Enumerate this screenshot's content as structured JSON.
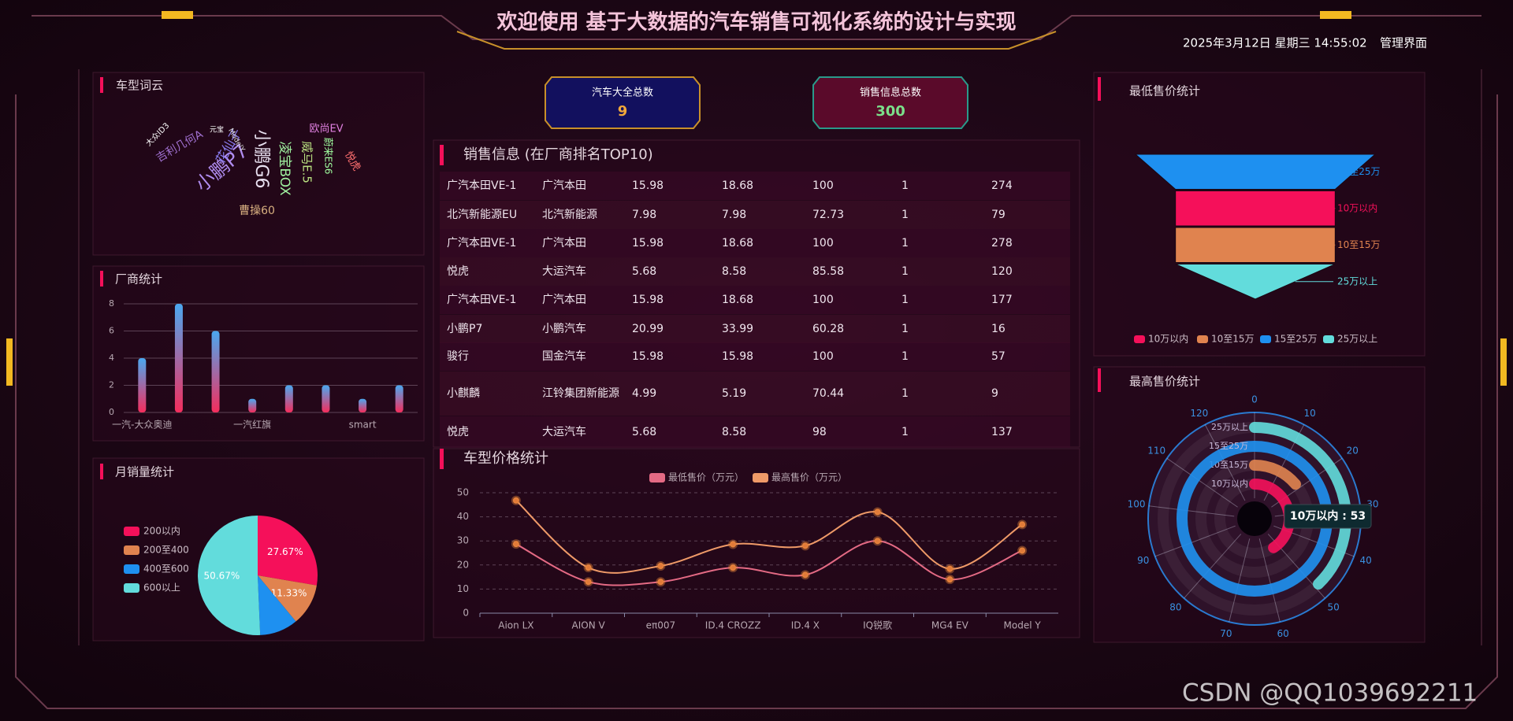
{
  "header": {
    "title": "欢迎使用 基于大数据的汽车销售可视化系统的设计与实现",
    "datetime": "2025年3月12日 星期三 14:55:02",
    "admin_link": "管理界面"
  },
  "watermark": "CSDN @QQ1039692211",
  "word_cloud": {
    "title": "车型词云",
    "words": [
      "小鹏P7",
      "花仙子",
      "吉利几何A",
      "大众ID3",
      "元宝",
      "ModelY",
      "小鹏G6",
      "凌宝BOX",
      "威马E.5",
      "欧尚EV",
      "蔚来ES6",
      "悦虎",
      "曹操60"
    ]
  },
  "counters": [
    {
      "label": "汽车大全总数",
      "value": 9
    },
    {
      "label": "销售信息总数",
      "value": 300
    }
  ],
  "sales_table": {
    "title": "销售信息 (在厂商排名TOP10)",
    "rows": [
      [
        "广汽本田VE-1",
        "广汽本田",
        "15.98",
        "18.68",
        "100",
        "1",
        "274"
      ],
      [
        "北汽新能源EU",
        "北汽新能源",
        "7.98",
        "7.98",
        "72.73",
        "1",
        "79"
      ],
      [
        "广汽本田VE-1",
        "广汽本田",
        "15.98",
        "18.68",
        "100",
        "1",
        "278"
      ],
      [
        "悦虎",
        "大运汽车",
        "5.68",
        "8.58",
        "85.58",
        "1",
        "120"
      ],
      [
        "广汽本田VE-1",
        "广汽本田",
        "15.98",
        "18.68",
        "100",
        "1",
        "177"
      ],
      [
        "小鹏P7",
        "小鹏汽车",
        "20.99",
        "33.99",
        "60.28",
        "1",
        "16"
      ],
      [
        "骏行",
        "国金汽车",
        "15.98",
        "15.98",
        "100",
        "1",
        "57"
      ],
      [
        "小麒麟",
        "江铃集团新能源",
        "4.99",
        "5.19",
        "70.44",
        "1",
        "9"
      ],
      [
        "悦虎",
        "大运汽车",
        "5.68",
        "8.58",
        "98",
        "1",
        "137"
      ]
    ]
  },
  "chart_data": [
    {
      "type": "bar",
      "title": "厂商统计",
      "categories": [
        "一汽-大众奥迪",
        null,
        null,
        "一汽红旗",
        null,
        null,
        "smart",
        null
      ],
      "values": [
        4,
        8,
        6,
        1,
        2,
        2,
        1,
        2
      ],
      "colors": [
        "#4aa8f0",
        "#f52d5c"
      ],
      "ylim": [
        0,
        8
      ],
      "yticks": [
        0,
        2,
        4,
        6,
        8
      ],
      "grid": true
    },
    {
      "type": "pie",
      "title": "月销量统计",
      "categories": [
        "200以内",
        "200至400",
        "400至600",
        "600以上"
      ],
      "values": [
        27.67,
        11.33,
        10.33,
        50.67
      ],
      "value_labels": [
        "27.67%",
        "11.33%",
        null,
        "50.67%"
      ],
      "colors": [
        "#f5105a",
        "#e0834f",
        "#1e90f0",
        "#62dcdc"
      ],
      "legend": "left"
    },
    {
      "type": "line",
      "title": "车型价格统计",
      "categories": [
        "Aion LX",
        "AION V",
        "eπ007",
        "ID.4 CROZZ",
        "ID.4 X",
        "IQ锐歌",
        "MG4 EV",
        "Model Y"
      ],
      "series": [
        {
          "name": "最低售价（万元）",
          "color": "#e46a84",
          "values": [
            28.7,
            13,
            13,
            18.9,
            15.9,
            30,
            14,
            26
          ]
        },
        {
          "name": "最高售价（万元）",
          "color": "#ef9a68",
          "values": [
            46.8,
            18.9,
            19.6,
            28.6,
            28,
            42,
            18.4,
            36.8
          ]
        }
      ],
      "ylim": [
        0,
        50
      ],
      "yticks": [
        0,
        10,
        20,
        30,
        40,
        50
      ],
      "grid": true,
      "legend": "top"
    },
    {
      "type": "funnel",
      "title": "最低售价统计",
      "categories": [
        "15至25万",
        "10万以内",
        "10至15万",
        "25万以上"
      ],
      "values": [
        3,
        2,
        2,
        2
      ],
      "colors": [
        "#1e90f0",
        "#f5105a",
        "#e0834f",
        "#62dcdc"
      ],
      "legend": "bottom"
    },
    {
      "type": "polar-bar",
      "title": "最高售价统计",
      "categories": [
        "10万以内",
        "10至15万",
        "15至25万",
        "25万以上"
      ],
      "values": [
        53,
        18,
        130,
        49
      ],
      "colors": [
        "#f5105a",
        "#e0834f",
        "#1e90f0",
        "#62dcdc"
      ],
      "anglelim": [
        0,
        130
      ],
      "angleticks": [
        0,
        10,
        20,
        30,
        40,
        50,
        60,
        70,
        80,
        90,
        100,
        110,
        120
      ],
      "tooltip": "10万以内 : 53"
    }
  ]
}
